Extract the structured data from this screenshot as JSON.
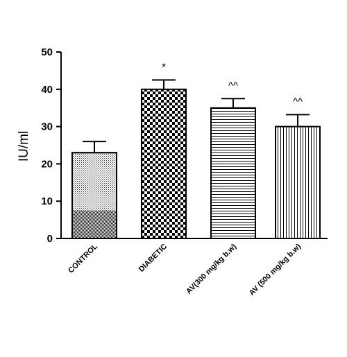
{
  "chart_data": {
    "type": "bar",
    "ylabel": "IU/ml",
    "xlabel": "",
    "ylim": [
      0,
      50
    ],
    "yticks": [
      0,
      10,
      20,
      30,
      40,
      50
    ],
    "categories": [
      "CONTROL",
      "DIABETIC",
      "AV(300 mg/kg b.w)",
      "AV (500 mg/kg b.w)"
    ],
    "values": [
      23,
      40,
      35,
      30
    ],
    "errors": [
      3,
      2.5,
      2.5,
      3.2
    ],
    "annotations": [
      "",
      "*",
      "^^",
      "^^"
    ],
    "patterns": [
      "dots",
      "checker",
      "horizontal-lines",
      "vertical-lines"
    ],
    "grid": false
  }
}
